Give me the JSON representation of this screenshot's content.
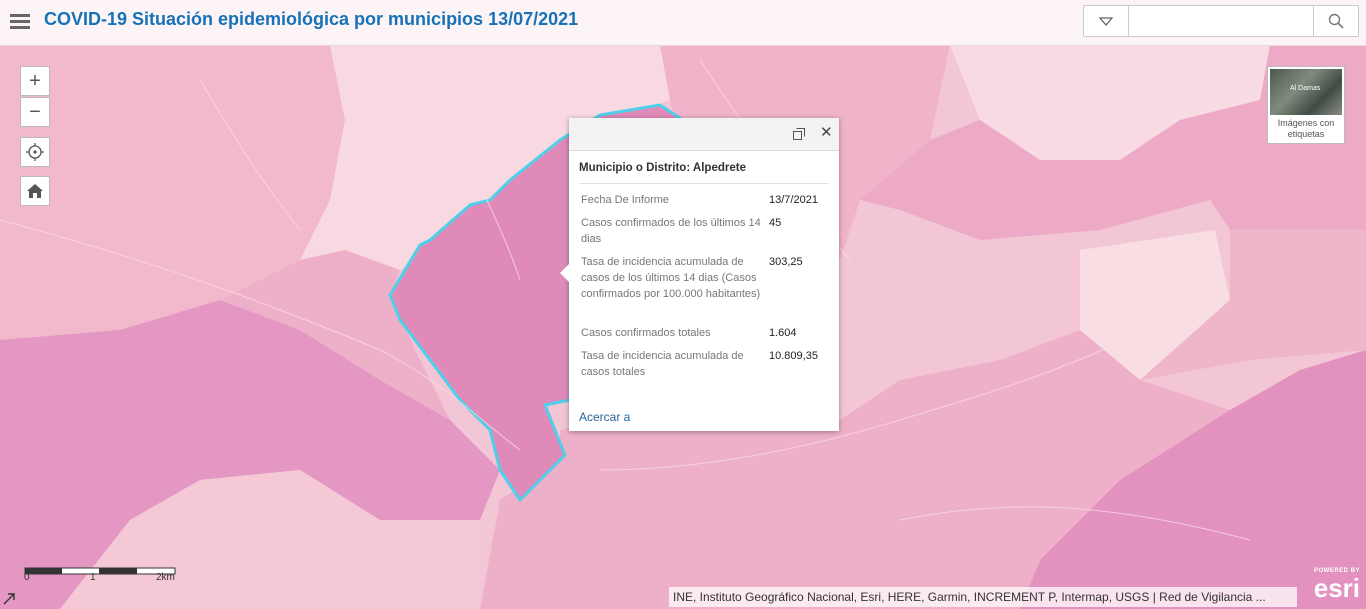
{
  "app": {
    "title": "COVID-19 Situación epidemiológica por municipios 13/07/2021"
  },
  "header": {
    "menu_icon": "hamburger-icon",
    "search": {
      "value": "",
      "placeholder": "",
      "dropdown_icon": "triangle-down-icon",
      "search_icon": "search-icon"
    }
  },
  "map_controls": {
    "zoom_in": "+",
    "zoom_out": "−",
    "locate_icon": "locate-icon",
    "home_icon": "home-icon"
  },
  "basemap_toggle": {
    "thumb_text": "Al Damas",
    "label": "Imágenes con etiquetas"
  },
  "popup": {
    "title": "Municipio o Distrito: Alpedrete",
    "fields": [
      {
        "label": "Fecha De Informe",
        "value": "13/7/2021"
      },
      {
        "label": "Casos confirmados de los últimos 14 dias",
        "value": "45"
      },
      {
        "label": "Tasa de incidencia acumulada de casos de los últimos 14 dias (Casos confirmados por 100.000 habitantes)",
        "value": "303,25"
      },
      {
        "label": "Casos confirmados totales",
        "value": "1.604"
      },
      {
        "label": "Tasa de incidencia acumulada de casos totales",
        "value": "10.809,35"
      }
    ],
    "zoom_to": "Acercar a",
    "maximize_icon": "maximize-icon",
    "close_icon": "close-icon"
  },
  "scale_bar": {
    "labels": [
      "0",
      "1",
      "2km"
    ]
  },
  "attribution": "INE, Instituto Geográfico Nacional, Esri, HERE, Garmin, INCREMENT P, Intermap, USGS | Red de Vigilancia ...",
  "esri_logo": {
    "powered_by": "POWERED BY",
    "name": "esri"
  },
  "colors": {
    "title": "#1672b5",
    "highlight_outline": "#4fd0ea",
    "region_dark": "#e48fbe",
    "region_mid": "#eca7c7",
    "region_light": "#f5c9d7",
    "region_pale": "#f8dde3"
  }
}
